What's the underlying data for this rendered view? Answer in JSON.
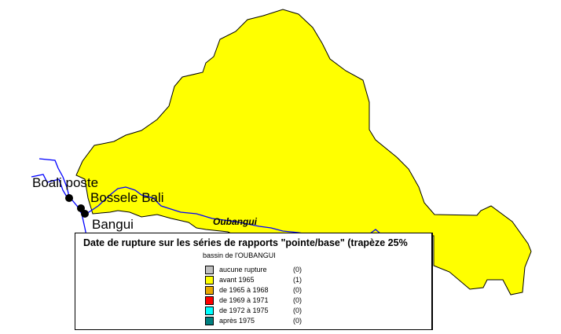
{
  "map": {
    "basin_fill": "#ffff00",
    "river_color": "#0000ff",
    "river_label": "Oubangui",
    "stations": [
      {
        "name": "Boali poste"
      },
      {
        "name": "Bossele Bali"
      },
      {
        "name": "Bangui"
      }
    ]
  },
  "legend": {
    "title": "Date de rupture sur les séries de rapports \"pointe/base\" (trapèze 25%",
    "subtitle": "bassin de l'OUBANGUI",
    "items": [
      {
        "label": "aucune rupture",
        "count": "(0)",
        "color": "#c0c0c0"
      },
      {
        "label": "avant 1965",
        "count": "(1)",
        "color": "#ffff00"
      },
      {
        "label": "de 1965 à 1968",
        "count": "(0)",
        "color": "#e8a800"
      },
      {
        "label": "de 1969 à 1971",
        "count": "(0)",
        "color": "#ff0000"
      },
      {
        "label": "de 1972 à 1975",
        "count": "(0)",
        "color": "#00ffff"
      },
      {
        "label": "après 1975",
        "count": "(0)",
        "color": "#008080"
      }
    ]
  }
}
